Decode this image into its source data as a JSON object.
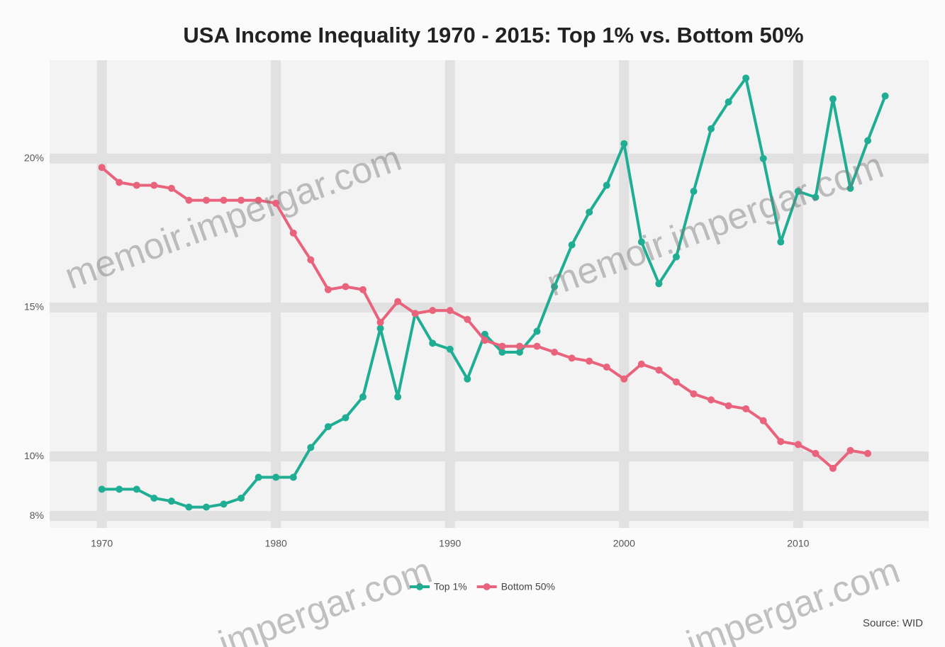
{
  "chart_data": {
    "type": "line",
    "title": "USA Income Inequality 1970 - 2015: Top 1% vs. Bottom 50%",
    "source": "Source: WID",
    "watermarks": [
      "memoir.impergar.com",
      "memoir.impergar.com",
      "impergar.com",
      "impergar.com"
    ],
    "x": [
      1970,
      1971,
      1972,
      1973,
      1974,
      1975,
      1976,
      1977,
      1978,
      1979,
      1980,
      1981,
      1982,
      1983,
      1984,
      1985,
      1986,
      1987,
      1988,
      1989,
      1990,
      1991,
      1992,
      1993,
      1994,
      1995,
      1996,
      1997,
      1998,
      1999,
      2000,
      2001,
      2002,
      2003,
      2004,
      2005,
      2006,
      2007,
      2008,
      2009,
      2010,
      2011,
      2012,
      2013,
      2014,
      2015
    ],
    "series": [
      {
        "name": "Top 1%",
        "color": "#1fae93",
        "values": [
          8.9,
          8.9,
          8.9,
          8.6,
          8.5,
          8.3,
          8.3,
          8.4,
          8.6,
          9.3,
          9.3,
          9.3,
          10.3,
          11.0,
          11.3,
          12.0,
          14.3,
          12.0,
          14.8,
          13.8,
          13.6,
          12.6,
          14.1,
          13.5,
          13.5,
          14.2,
          15.7,
          17.1,
          18.2,
          19.1,
          20.5,
          17.2,
          15.8,
          16.7,
          18.9,
          21.0,
          21.9,
          22.7,
          20.0,
          17.2,
          18.9,
          18.7,
          22.0,
          19.0,
          20.6,
          22.1
        ]
      },
      {
        "name": "Bottom 50%",
        "color": "#e9637c",
        "values": [
          19.7,
          19.2,
          19.1,
          19.1,
          19.0,
          18.6,
          18.6,
          18.6,
          18.6,
          18.6,
          18.5,
          17.5,
          16.6,
          15.6,
          15.7,
          15.6,
          14.5,
          15.2,
          14.8,
          14.9,
          14.9,
          14.6,
          13.9,
          13.7,
          13.7,
          13.7,
          13.5,
          13.3,
          13.2,
          13.0,
          12.6,
          13.1,
          12.9,
          12.5,
          12.1,
          11.9,
          11.7,
          11.6,
          11.2,
          10.5,
          10.4,
          10.1,
          9.6,
          10.2,
          10.1,
          null
        ]
      }
    ],
    "xlim": [
      1967,
      2017.5
    ],
    "xticks": [
      1970,
      1980,
      1990,
      2000,
      2010
    ],
    "ylim": [
      7.6,
      23.3
    ],
    "yticks": [
      {
        "value": 8,
        "label": "8%"
      },
      {
        "value": 10,
        "label": "10%"
      },
      {
        "value": 15,
        "label": "15%"
      },
      {
        "value": 20,
        "label": "20%"
      }
    ],
    "grid": true,
    "legend": "bottom"
  }
}
